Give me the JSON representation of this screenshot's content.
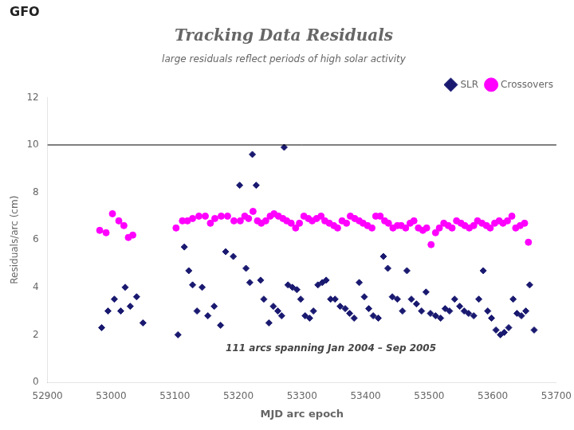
{
  "chart_data": {
    "type": "scatter",
    "title": "Tracking Data Residuals",
    "subtitle": "large residuals reflect periods of high solar activity",
    "annotations": [
      "111 arcs spanning Jan 2004 – Sep 2005",
      "GFO"
    ],
    "xlabel": "MJD arc epoch",
    "ylabel": "Residuals/arc (cm)",
    "xlim": [
      52900,
      53700
    ],
    "ylim": [
      0,
      12
    ],
    "xticks": [
      52900,
      53000,
      53100,
      53200,
      53300,
      53400,
      53500,
      53600,
      53700
    ],
    "yticks": [
      0,
      2,
      4,
      6,
      8,
      10,
      12
    ],
    "hline": 10,
    "grid": false,
    "legend": "upper right",
    "series": [
      {
        "name": "SLR",
        "color": "#191970",
        "marker": "diamond",
        "x": [
          52985,
          52995,
          53005,
          53015,
          53022,
          53030,
          53040,
          53050,
          53105,
          53115,
          53122,
          53128,
          53135,
          53143,
          53152,
          53162,
          53172,
          53180,
          53192,
          53202,
          53212,
          53218,
          53222,
          53228,
          53235,
          53240,
          53248,
          53255,
          53262,
          53268,
          53272,
          53278,
          53285,
          53292,
          53298,
          53305,
          53312,
          53318,
          53325,
          53332,
          53338,
          53345,
          53352,
          53360,
          53368,
          53375,
          53382,
          53390,
          53398,
          53405,
          53412,
          53420,
          53428,
          53435,
          53442,
          53450,
          53458,
          53465,
          53472,
          53480,
          53488,
          53495,
          53502,
          53510,
          53518,
          53525,
          53532,
          53540,
          53548,
          53555,
          53562,
          53570,
          53578,
          53585,
          53592,
          53598,
          53605,
          53612,
          53618,
          53625,
          53632,
          53638,
          53645,
          53652,
          53658,
          53665
        ],
        "values": [
          2.3,
          3.0,
          3.5,
          3.0,
          4.0,
          3.2,
          3.6,
          2.5,
          2.0,
          5.7,
          4.7,
          4.1,
          3.0,
          4.0,
          2.8,
          3.2,
          2.4,
          5.5,
          5.3,
          8.3,
          4.8,
          4.2,
          9.6,
          8.3,
          4.3,
          3.5,
          2.5,
          3.2,
          3.0,
          2.8,
          9.9,
          4.1,
          4.0,
          3.9,
          3.5,
          2.8,
          2.7,
          3.0,
          4.1,
          4.2,
          4.3,
          3.5,
          3.5,
          3.2,
          3.1,
          2.9,
          2.7,
          4.2,
          3.6,
          3.1,
          2.8,
          2.7,
          5.3,
          4.8,
          3.6,
          3.5,
          3.0,
          4.7,
          3.5,
          3.3,
          3.0,
          3.8,
          2.9,
          2.8,
          2.7,
          3.1,
          3.0,
          3.5,
          3.2,
          3.0,
          2.9,
          2.8,
          3.5,
          4.7,
          3.0,
          2.7,
          2.2,
          2.0,
          2.1,
          2.3,
          3.5,
          2.9,
          2.8,
          3.0,
          4.1,
          2.2
        ]
      },
      {
        "name": "Crossovers",
        "color": "#FF00FF",
        "marker": "circle",
        "x": [
          52982,
          52992,
          53002,
          53012,
          53020,
          53027,
          53034,
          53102,
          53112,
          53120,
          53128,
          53138,
          53148,
          53156,
          53163,
          53173,
          53183,
          53193,
          53203,
          53210,
          53216,
          53223,
          53230,
          53236,
          53243,
          53250,
          53256,
          53263,
          53270,
          53276,
          53283,
          53290,
          53296,
          53303,
          53310,
          53316,
          53323,
          53330,
          53336,
          53343,
          53350,
          53356,
          53363,
          53370,
          53376,
          53383,
          53390,
          53396,
          53403,
          53410,
          53416,
          53423,
          53430,
          53436,
          53443,
          53450,
          53456,
          53463,
          53470,
          53476,
          53483,
          53490,
          53496,
          53503,
          53510,
          53516,
          53523,
          53530,
          53536,
          53543,
          53550,
          53556,
          53563,
          53570,
          53576,
          53583,
          53590,
          53596,
          53603,
          53610,
          53616,
          53623,
          53630,
          53636,
          53643,
          53650,
          53656
        ],
        "values": [
          6.4,
          6.3,
          7.1,
          6.8,
          6.6,
          6.1,
          6.2,
          6.5,
          6.8,
          6.8,
          6.9,
          7.0,
          7.0,
          6.7,
          6.9,
          7.0,
          7.0,
          6.8,
          6.8,
          7.0,
          6.9,
          7.2,
          6.8,
          6.7,
          6.8,
          7.0,
          7.1,
          7.0,
          6.9,
          6.8,
          6.7,
          6.5,
          6.7,
          7.0,
          6.9,
          6.8,
          6.9,
          7.0,
          6.8,
          6.7,
          6.6,
          6.5,
          6.8,
          6.7,
          7.0,
          6.9,
          6.8,
          6.7,
          6.6,
          6.5,
          7.0,
          7.0,
          6.8,
          6.7,
          6.5,
          6.6,
          6.6,
          6.5,
          6.7,
          6.8,
          6.5,
          6.4,
          6.5,
          5.8,
          6.3,
          6.5,
          6.7,
          6.6,
          6.5,
          6.8,
          6.7,
          6.6,
          6.5,
          6.6,
          6.8,
          6.7,
          6.6,
          6.5,
          6.7,
          6.8,
          6.7,
          6.8,
          7.0,
          6.5,
          6.6,
          6.7,
          5.9
        ]
      }
    ]
  }
}
